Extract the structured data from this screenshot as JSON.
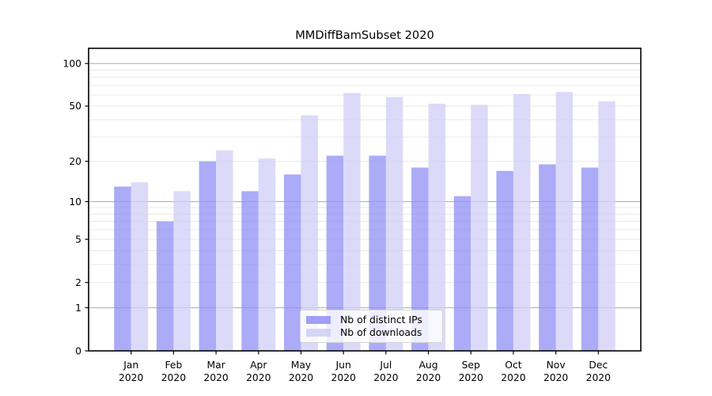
{
  "chart_data": {
    "type": "bar",
    "title": "MMDiffBamSubset 2020",
    "categories": [
      "Jan",
      "Feb",
      "Mar",
      "Apr",
      "May",
      "Jun",
      "Jul",
      "Aug",
      "Sep",
      "Oct",
      "Nov",
      "Dec"
    ],
    "category_year": "2020",
    "series": [
      {
        "name": "Nb of distinct IPs",
        "color": "#8f8ff5",
        "values": [
          13,
          7,
          20,
          12,
          16,
          22,
          22,
          18,
          11,
          17,
          19,
          18
        ]
      },
      {
        "name": "Nb of downloads",
        "color": "#d0cdf5",
        "values": [
          14,
          12,
          24,
          21,
          43,
          62,
          58,
          52,
          51,
          61,
          63,
          54
        ]
      }
    ],
    "bar_opacity": 0.75,
    "xlabel": "",
    "ylabel": "",
    "yscale": "log1p",
    "ylim": [
      0,
      128
    ],
    "yticks": [
      0,
      1,
      2,
      5,
      10,
      20,
      50,
      100
    ],
    "gridlines": {
      "major": [
        1,
        10,
        100
      ],
      "minor": [
        2,
        3,
        4,
        5,
        6,
        7,
        8,
        9,
        20,
        30,
        40,
        50,
        60,
        70,
        80,
        90
      ]
    },
    "grid": true,
    "legend_position": "lower center"
  },
  "style": {
    "major_grid_color": "#b3b3b3",
    "minor_grid_color": "#e9e9e9",
    "spine_color": "#000000",
    "tick_label_color": "#000000"
  }
}
